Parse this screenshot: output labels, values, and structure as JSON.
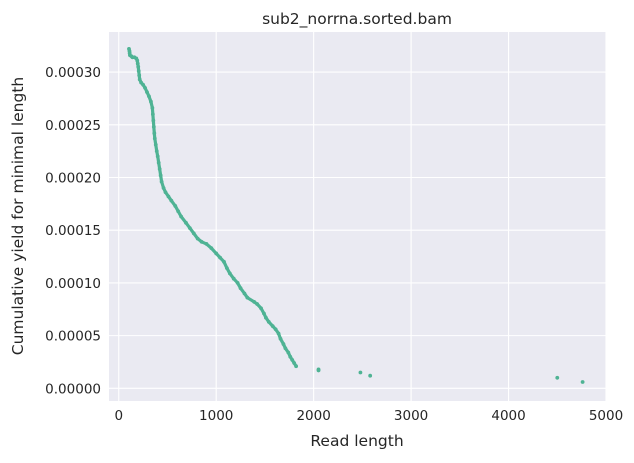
{
  "chart_data": {
    "type": "scatter",
    "title": "sub2_norrna.sorted.bam",
    "xlabel": "Read length",
    "ylabel": "Cumulative yield for minimal length",
    "xlim": [
      -100,
      5000
    ],
    "ylim": [
      -1.2e-05,
      0.000338
    ],
    "xticks": [
      0,
      1000,
      2000,
      3000,
      4000,
      5000
    ],
    "xtick_labels": [
      "0",
      "1000",
      "2000",
      "3000",
      "4000",
      "5000"
    ],
    "yticks": [
      0.0,
      5e-05,
      0.0001,
      0.00015,
      0.0002,
      0.00025,
      0.0003
    ],
    "ytick_labels": [
      "0.00000",
      "0.00005",
      "0.00010",
      "0.00015",
      "0.00020",
      "0.00025",
      "0.00030"
    ],
    "grid": true,
    "background_color": "#eaeaf2",
    "point_color": "#4fb394",
    "series": [
      {
        "points": [
          [
            105,
            0.000322
          ],
          [
            110,
            0.00032
          ],
          [
            112,
            0.000318
          ],
          [
            115,
            0.000316
          ],
          [
            130,
            0.000315
          ],
          [
            140,
            0.000314
          ],
          [
            160,
            0.000314
          ],
          [
            180,
            0.000313
          ],
          [
            190,
            0.000311
          ],
          [
            195,
            0.000308
          ],
          [
            200,
            0.000305
          ],
          [
            205,
            0.000301
          ],
          [
            210,
            0.000297
          ],
          [
            215,
            0.000293
          ],
          [
            230,
            0.00029
          ],
          [
            250,
            0.000288
          ],
          [
            270,
            0.000285
          ],
          [
            290,
            0.000281
          ],
          [
            310,
            0.000277
          ],
          [
            330,
            0.000272
          ],
          [
            345,
            0.000266
          ],
          [
            350,
            0.00026
          ],
          [
            355,
            0.000254
          ],
          [
            360,
            0.000248
          ],
          [
            365,
            0.000242
          ],
          [
            370,
            0.000237
          ],
          [
            380,
            0.000231
          ],
          [
            390,
            0.000225
          ],
          [
            400,
            0.00022
          ],
          [
            410,
            0.000214
          ],
          [
            420,
            0.000208
          ],
          [
            430,
            0.000202
          ],
          [
            440,
            0.000196
          ],
          [
            460,
            0.00019
          ],
          [
            480,
            0.000186
          ],
          [
            510,
            0.000182
          ],
          [
            540,
            0.000178
          ],
          [
            580,
            0.000173
          ],
          [
            610,
            0.000168
          ],
          [
            640,
            0.000163
          ],
          [
            690,
            0.000157
          ],
          [
            730,
            0.000152
          ],
          [
            770,
            0.000147
          ],
          [
            810,
            0.000142
          ],
          [
            850,
            0.000139
          ],
          [
            900,
            0.000137
          ],
          [
            950,
            0.000133
          ],
          [
            1000,
            0.000128
          ],
          [
            1040,
            0.000124
          ],
          [
            1080,
            0.00012
          ],
          [
            1110,
            0.000114
          ],
          [
            1140,
            0.000109
          ],
          [
            1180,
            0.000104
          ],
          [
            1220,
            0.0001
          ],
          [
            1250,
            9.5e-05
          ],
          [
            1290,
            9e-05
          ],
          [
            1320,
            8.6e-05
          ],
          [
            1390,
            8.2e-05
          ],
          [
            1420,
            8e-05
          ],
          [
            1460,
            7.6e-05
          ],
          [
            1490,
            7.1e-05
          ],
          [
            1510,
            6.7e-05
          ],
          [
            1540,
            6.3e-05
          ],
          [
            1580,
            5.9e-05
          ],
          [
            1610,
            5.6e-05
          ],
          [
            1640,
            5.2e-05
          ],
          [
            1660,
            4.7e-05
          ],
          [
            1690,
            4.2e-05
          ],
          [
            1710,
            3.8e-05
          ],
          [
            1740,
            3.4e-05
          ],
          [
            1760,
            3e-05
          ],
          [
            1780,
            2.7e-05
          ],
          [
            1800,
            2.4e-05
          ],
          [
            1820,
            2.1e-05
          ],
          [
            2050,
            1.8e-05
          ],
          [
            2050,
            1.7e-05
          ],
          [
            2480,
            1.5e-05
          ],
          [
            2580,
            1.2e-05
          ],
          [
            4500,
            1e-05
          ],
          [
            4760,
            6e-06
          ]
        ]
      }
    ]
  }
}
